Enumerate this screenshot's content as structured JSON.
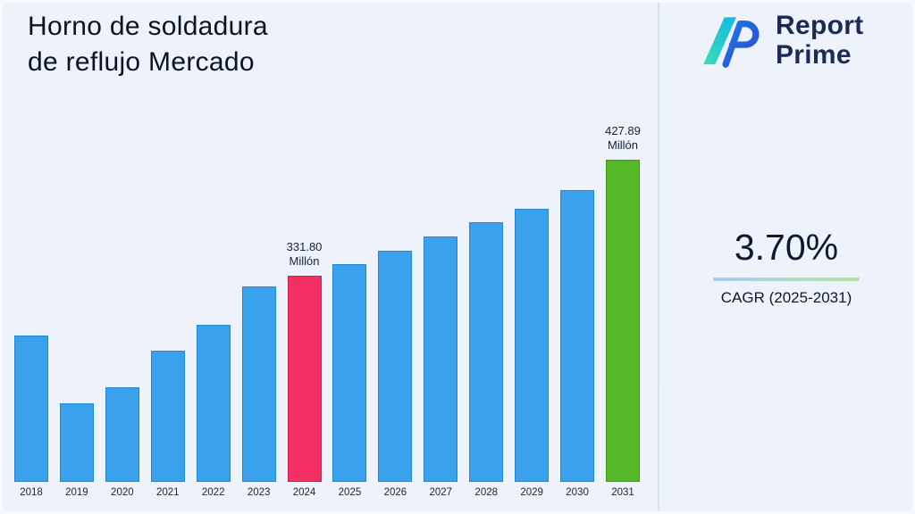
{
  "page": {
    "title_line1": "Horno de soldadura",
    "title_line2": "de reflujo Mercado"
  },
  "brand": {
    "icon": "report-prime-logo-icon",
    "name_line1": "Report",
    "name_line2": "Prime",
    "name_color": "#1d2a55",
    "icon_teal": "#2fd9ac",
    "icon_blue": "#1f78e8"
  },
  "cagr": {
    "value": "3.70%",
    "label": "CAGR (2025-2031)"
  },
  "chart_data": {
    "type": "bar",
    "title": "Horno de soldadura de reflujo Mercado",
    "unit": "Millón",
    "categories": [
      "2018",
      "2019",
      "2020",
      "2021",
      "2022",
      "2023",
      "2024",
      "2025",
      "2026",
      "2027",
      "2028",
      "2029",
      "2030",
      "2031"
    ],
    "values": [
      282,
      225,
      239,
      269,
      291,
      323,
      331.8,
      341,
      352,
      364,
      376,
      387,
      403,
      427.89
    ],
    "labeled_points": [
      {
        "category": "2024",
        "value": 331.8,
        "label_line1": "331.80",
        "label_line2": "Millón"
      },
      {
        "category": "2031",
        "value": 427.89,
        "label_line1": "427.89",
        "label_line2": "Millón"
      }
    ],
    "highlights": [
      {
        "category": "2024",
        "color": "#f42f63",
        "border_color": "#d81b4e",
        "label_line1": "331.80",
        "label_line2": "Millón"
      },
      {
        "category": "2031",
        "color": "#55b826",
        "border_color": "#3f9b12",
        "label_line1": "427.89",
        "label_line2": "Millón"
      }
    ],
    "bar_default_color": "#3aa2ec",
    "bar_default_border": "#2388d8",
    "ylim": [
      160,
      460
    ],
    "xlabel": "",
    "ylabel": "",
    "grid": false,
    "legend": "none"
  }
}
